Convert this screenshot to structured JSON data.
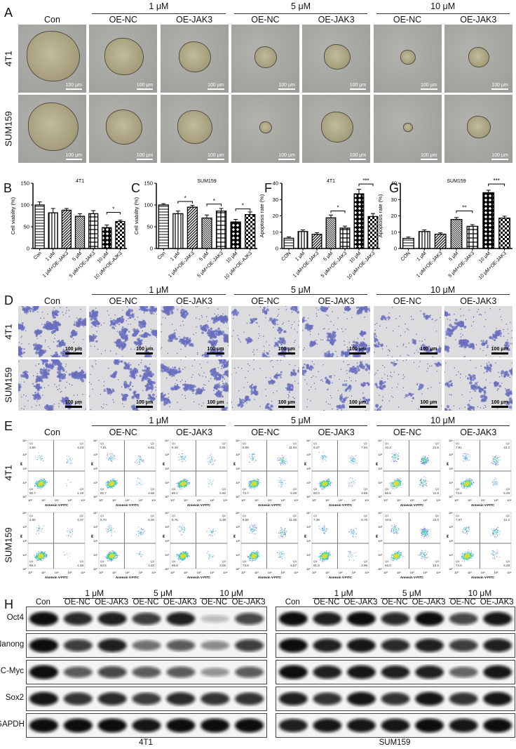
{
  "panel_letters": {
    "A": "A",
    "B": "B",
    "C": "C",
    "D": "D",
    "E": "E",
    "F": "F",
    "G": "G",
    "H": "H"
  },
  "groups": [
    "1 μM",
    "5 μM",
    "10 μM"
  ],
  "columns": [
    "Con",
    "OE-NC",
    "OE-JAK3",
    "OE-NC",
    "OE-JAK3",
    "OE-NC",
    "OE-JAK3"
  ],
  "rows": [
    "4T1",
    "SUM159"
  ],
  "scale_bar": "100 μm",
  "panel_E": {
    "x_axis_label": "Annexin V-FITC",
    "y_axis_label": "PI",
    "axis_ticks": [
      "10⁰",
      "10¹",
      "10²",
      "10³",
      "10⁴"
    ],
    "quadrant_labels": [
      "Q1",
      "Q2",
      "Q3",
      "Q4"
    ],
    "values": {
      "4T1": [
        [
          "3.66",
          "4.23",
          "1.19",
          "90.7"
        ],
        [
          "7.81",
          "6.61",
          "2.68",
          "82.7"
        ],
        [
          "6.49",
          "5.91",
          "2.60",
          "85.1"
        ],
        [
          "6.08",
          "11.94",
          "5.28",
          "74.7"
        ],
        [
          "6.27",
          "7.84",
          "3.89",
          "82.0"
        ],
        [
          "10.3",
          "21.6",
          "11.5",
          "56.6"
        ],
        [
          "7.91",
          "12.2",
          "5.29",
          "74.6"
        ]
      ],
      "SUM159": [
        [
          "3.95",
          "4.37",
          "1.38",
          "90.3"
        ],
        [
          "5.70",
          "6.30",
          "3.40",
          "84.6"
        ],
        [
          "5.76",
          "5.38",
          "3.06",
          "85.8"
        ],
        [
          "9.56",
          "11.05",
          "5.57",
          "73.8"
        ],
        [
          "7.39",
          "6.76",
          "3.96",
          "81.9"
        ],
        [
          "10.5",
          "23.0",
          "10.5",
          "56.0"
        ],
        [
          "7.87",
          "12.2",
          "5.29",
          "74.6"
        ]
      ]
    }
  },
  "panel_H": {
    "groups": [
      "1 μM",
      "5 μM",
      "10 μM"
    ],
    "lanes": [
      "Con",
      "OE-NC",
      "OE-JAK3",
      "OE-NC",
      "OE-JAK3",
      "OE-NC",
      "OE-JAK3"
    ],
    "proteins": [
      "Oct4",
      "Nanong",
      "C-Myc",
      "Sox2",
      "GAPDH"
    ],
    "cell_lines": [
      "4T1",
      "SUM159"
    ],
    "band_intensity": {
      "4T1": [
        [
          1.0,
          0.85,
          0.9,
          0.75,
          0.9,
          0.1,
          0.7
        ],
        [
          1.0,
          0.75,
          0.9,
          0.5,
          0.6,
          0.35,
          0.75
        ],
        [
          1.0,
          0.6,
          0.7,
          0.6,
          0.6,
          0.3,
          0.6
        ],
        [
          0.95,
          0.8,
          0.85,
          0.75,
          0.85,
          0.8,
          0.8
        ],
        [
          1.0,
          1.0,
          1.0,
          0.95,
          1.0,
          1.0,
          1.0
        ]
      ],
      "SUM159": [
        [
          1.0,
          0.9,
          1.0,
          0.85,
          1.0,
          0.7,
          0.95
        ],
        [
          1.0,
          0.9,
          0.95,
          0.85,
          0.9,
          0.75,
          0.9
        ],
        [
          1.0,
          0.9,
          0.95,
          0.9,
          0.9,
          0.55,
          0.95
        ],
        [
          0.9,
          0.8,
          0.95,
          0.8,
          0.95,
          0.8,
          0.95
        ],
        [
          0.9,
          0.95,
          0.95,
          0.95,
          1.0,
          0.95,
          1.0
        ]
      ]
    }
  },
  "chart_data": [
    {
      "type": "bar",
      "panel": "B",
      "title": "4T1",
      "ylabel": "Cell viability (%)",
      "ylim": [
        0,
        150
      ],
      "yticks": [
        "0",
        "50",
        "100",
        "150"
      ],
      "categories": [
        "Con",
        "1 μM",
        "1 μM+OE-JAK3",
        "5 μM",
        "5 μM+OE-JAK3",
        "10 μM",
        "10 μM+OE-AJK3"
      ],
      "values": [
        100,
        82,
        88,
        74,
        80,
        48,
        62
      ],
      "errors": [
        7,
        10,
        4,
        6,
        7,
        6,
        3
      ],
      "significance": [
        {
          "pair": [
            5,
            6
          ],
          "label": "*",
          "y": 83
        }
      ]
    },
    {
      "type": "bar",
      "panel": "C",
      "title": "SUM159",
      "ylabel": "Cell viability (%)",
      "ylim": [
        0,
        150
      ],
      "yticks": [
        "0",
        "50",
        "100",
        "150"
      ],
      "categories": [
        "Con",
        "1 μM",
        "1 μM+OE-JAK3",
        "5 μM",
        "5 μM+OE-JAK3",
        "10 μM",
        "10 μM+OE-AJK3"
      ],
      "values": [
        100,
        80,
        95,
        70,
        86,
        61,
        78
      ],
      "errors": [
        3,
        6,
        4,
        7,
        6,
        6,
        6
      ],
      "significance": [
        {
          "pair": [
            1,
            2
          ],
          "label": "*",
          "y": 108
        },
        {
          "pair": [
            3,
            4
          ],
          "label": "*",
          "y": 102
        },
        {
          "pair": [
            5,
            6
          ],
          "label": "*",
          "y": 91
        }
      ]
    },
    {
      "type": "bar",
      "panel": "F",
      "title": "4T1",
      "ylabel": "Apoptosis rate (%)",
      "ylim": [
        0,
        40
      ],
      "yticks": [
        "0",
        "10",
        "20",
        "30",
        "40"
      ],
      "categories": [
        "CON",
        "1 μM",
        "1 μM+OE-JAK3",
        "5 μM",
        "5 μM+OE-JAK3",
        "10 μM",
        "10 μM+OE-JAK3"
      ],
      "values": [
        6.3,
        10.4,
        8.7,
        18.8,
        12.5,
        33.5,
        19.6
      ],
      "errors": [
        0.8,
        1.0,
        1.0,
        1.7,
        1.2,
        2.8,
        1.8
      ],
      "significance": [
        {
          "pair": [
            3,
            4
          ],
          "label": "*",
          "y": 23
        },
        {
          "pair": [
            5,
            6
          ],
          "label": "***",
          "y": 39.5
        }
      ]
    },
    {
      "type": "bar",
      "panel": "G",
      "title": "SUM159",
      "ylabel": "Apoptosis rate (%)",
      "ylim": [
        0,
        40
      ],
      "yticks": [
        "0",
        "10",
        "20",
        "30",
        "40"
      ],
      "categories": [
        "CON",
        "1 μM",
        "1 μM+OE-JAK3",
        "5 μM",
        "5 μM+OE-JAK3",
        "10 μM",
        "10 μM+OE-JAK3"
      ],
      "values": [
        6.2,
        10.4,
        8.8,
        17.8,
        13.6,
        34.2,
        18.6
      ],
      "errors": [
        0.8,
        1.0,
        0.8,
        1.2,
        1.0,
        1.5,
        1.2
      ],
      "significance": [
        {
          "pair": [
            3,
            4
          ],
          "label": "**",
          "y": 23
        },
        {
          "pair": [
            5,
            6
          ],
          "label": "***",
          "y": 39.5
        }
      ]
    }
  ]
}
